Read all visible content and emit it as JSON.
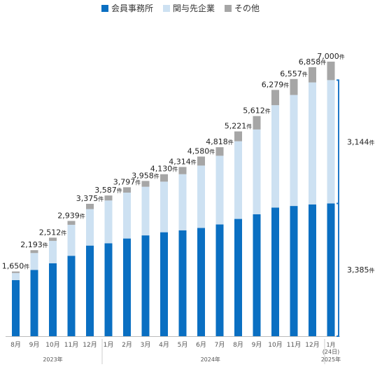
{
  "colors": {
    "member": "#0a6fc2",
    "related": "#cde1f2",
    "other": "#a6a6a6",
    "bracket": "#1f78c8"
  },
  "legend": {
    "member": "会員事務所",
    "related": "関与先企業",
    "other": "その他"
  },
  "chart_data": {
    "type": "bar",
    "stacked": true,
    "categories": [
      "8月",
      "9月",
      "10月",
      "11月",
      "12月",
      "1月",
      "2月",
      "3月",
      "4月",
      "5月",
      "6月",
      "7月",
      "8月",
      "9月",
      "10月",
      "11月",
      "12月",
      "1月\n(24日)"
    ],
    "years": [
      {
        "label": "2023年",
        "from": 0,
        "to": 4
      },
      {
        "label": "2024年",
        "from": 5,
        "to": 16
      },
      {
        "label": "2025年",
        "from": 17,
        "to": 17
      }
    ],
    "series": [
      {
        "name": "会員事務所",
        "values": [
          1430,
          1690,
          1860,
          2050,
          2310,
          2370,
          2490,
          2570,
          2650,
          2700,
          2760,
          2850,
          2990,
          3110,
          3280,
          3320,
          3360,
          3385
        ]
      },
      {
        "name": "関与先企業",
        "values": [
          180,
          430,
          570,
          790,
          930,
          1090,
          1170,
          1240,
          1290,
          1430,
          1590,
          1750,
          1980,
          2160,
          2610,
          2830,
          3110,
          3144
        ]
      },
      {
        "name": "その他",
        "values": [
          40,
          73,
          82,
          99,
          135,
          127,
          137,
          148,
          190,
          184,
          230,
          218,
          251,
          342,
          389,
          407,
          388,
          471
        ]
      }
    ],
    "totals": [
      "1,650",
      "2,193",
      "2,512",
      "2,939",
      "3,375",
      "3,587",
      "3,797",
      "3,958",
      "4,130",
      "4,314",
      "4,580",
      "4,818",
      "5,221",
      "5,612",
      "6,279",
      "6,557",
      "6,858",
      "7,000"
    ],
    "total_unit": "件",
    "ylim": [
      0,
      7500
    ],
    "brackets": [
      {
        "label": "3,144",
        "unit": "件",
        "from": 3385,
        "to": 6529
      },
      {
        "label": "3,385",
        "unit": "件",
        "from": 0,
        "to": 3385
      }
    ]
  }
}
